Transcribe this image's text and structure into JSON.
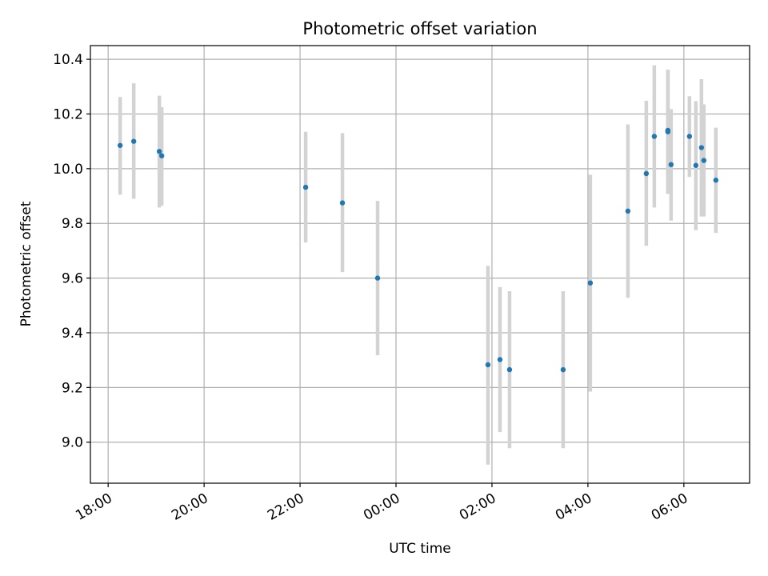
{
  "chart_data": {
    "type": "scatter",
    "title": "Photometric offset variation",
    "xlabel": "UTC time",
    "ylabel": "Photometric offset",
    "x_axis_kind": "time",
    "x_start": "18:00",
    "x_range_hours": [
      -0.37,
      13.37
    ],
    "ylim": [
      8.85,
      10.45
    ],
    "x_ticks": [
      "18:00",
      "20:00",
      "22:00",
      "00:00",
      "02:00",
      "04:00",
      "06:00"
    ],
    "y_ticks": [
      "9.0",
      "9.2",
      "9.4",
      "9.6",
      "9.8",
      "10.0",
      "10.2",
      "10.4"
    ],
    "grid": true,
    "point_color": "#1f77b4",
    "errorbar_color": "#d3d3d3",
    "points": [
      {
        "time": "18:15",
        "y": 10.085,
        "lo": 9.905,
        "hi": 10.262
      },
      {
        "time": "18:32",
        "y": 10.1,
        "lo": 9.89,
        "hi": 10.312
      },
      {
        "time": "19:04",
        "y": 10.063,
        "lo": 9.858,
        "hi": 10.267
      },
      {
        "time": "19:07",
        "y": 10.047,
        "lo": 9.865,
        "hi": 10.225
      },
      {
        "time": "22:07",
        "y": 9.932,
        "lo": 9.73,
        "hi": 10.135
      },
      {
        "time": "22:53",
        "y": 9.875,
        "lo": 9.622,
        "hi": 10.13
      },
      {
        "time": "23:37",
        "y": 9.6,
        "lo": 9.318,
        "hi": 9.882
      },
      {
        "time": "01:55",
        "y": 9.283,
        "lo": 8.918,
        "hi": 9.645
      },
      {
        "time": "02:10",
        "y": 9.302,
        "lo": 9.037,
        "hi": 9.567
      },
      {
        "time": "02:22",
        "y": 9.265,
        "lo": 8.978,
        "hi": 9.552
      },
      {
        "time": "03:29",
        "y": 9.265,
        "lo": 8.978,
        "hi": 9.552
      },
      {
        "time": "04:03",
        "y": 9.582,
        "lo": 9.185,
        "hi": 9.978
      },
      {
        "time": "04:50",
        "y": 9.845,
        "lo": 9.528,
        "hi": 10.162
      },
      {
        "time": "05:13",
        "y": 9.982,
        "lo": 9.718,
        "hi": 10.248
      },
      {
        "time": "05:23",
        "y": 10.118,
        "lo": 9.858,
        "hi": 10.378
      },
      {
        "time": "05:40",
        "y": 10.135,
        "lo": 9.908,
        "hi": 10.362
      },
      {
        "time": "05:40",
        "y": 10.14,
        "lo": 9.908,
        "hi": 10.362
      },
      {
        "time": "05:44",
        "y": 10.015,
        "lo": 9.81,
        "hi": 10.218
      },
      {
        "time": "06:07",
        "y": 10.118,
        "lo": 9.97,
        "hi": 10.265
      },
      {
        "time": "06:15",
        "y": 10.012,
        "lo": 9.775,
        "hi": 10.247
      },
      {
        "time": "06:22",
        "y": 10.077,
        "lo": 9.825,
        "hi": 10.327
      },
      {
        "time": "06:25",
        "y": 10.03,
        "lo": 9.825,
        "hi": 10.235
      },
      {
        "time": "06:40",
        "y": 9.958,
        "lo": 9.765,
        "hi": 10.15
      }
    ]
  }
}
